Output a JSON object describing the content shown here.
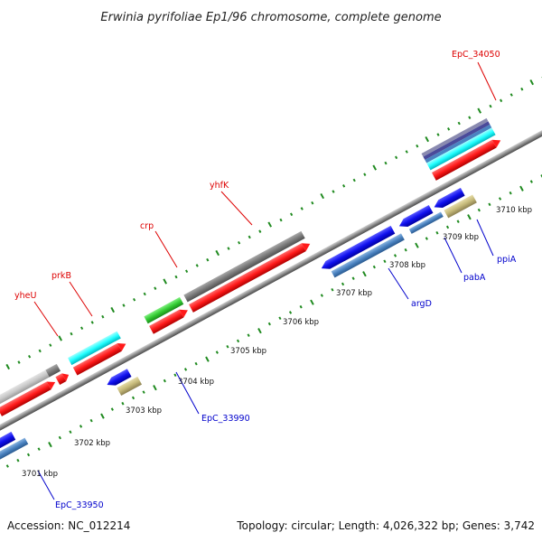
{
  "title": "Erwinia pyrifoliae Ep1/96 chromosome, complete genome",
  "footer": {
    "accession": "Accession: NC_012214",
    "summary": "Topology: circular; Length: 4,026,322 bp; Genes: 3,742"
  },
  "ticks": [
    "3701 kbp",
    "3702 kbp",
    "3703 kbp",
    "3704 kbp",
    "3705 kbp",
    "3706 kbp",
    "3707 kbp",
    "3708 kbp",
    "3709 kbp",
    "3710 kbp"
  ],
  "gene_labels": {
    "epc34050": "EpC_34050",
    "yhfk": "yhfK",
    "crp": "crp",
    "prkb": "prkB",
    "yheu": "yheU",
    "epc33990": "EpC_33990",
    "argd": "argD",
    "paba": "pabA",
    "ppia": "ppiA",
    "epc33950": "EpC_33950"
  },
  "colors": {
    "red": "#ff1a1a",
    "gray": "#808080",
    "lightgray": "#c8c8c8",
    "cyan": "#22ffff",
    "green": "#33cc33",
    "blue": "#1010ee",
    "steelblue": "#4a82c0",
    "khaki": "#c4b878",
    "dotgreen": "#1f8a1f",
    "backbone": "#8c8c8c",
    "label_red": "#dd0000",
    "label_blue": "#0000cc"
  }
}
